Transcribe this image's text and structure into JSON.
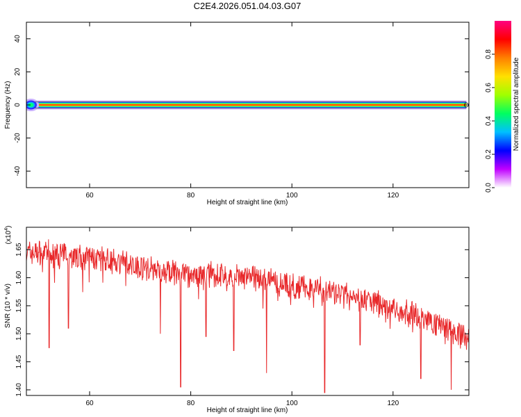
{
  "figure_title": "C2E4.2026.051.04.03.G07",
  "chart_data": [
    {
      "type": "heatmap",
      "title": "C2E4.2026.051.04.03.G07",
      "xlabel": "Height of straight line (km)",
      "ylabel": "Frequency (Hz)",
      "xlim": [
        47.5,
        135
      ],
      "ylim": [
        -50,
        50
      ],
      "x_ticks": [
        60,
        80,
        100,
        120
      ],
      "y_ticks": [
        -40,
        -20,
        0,
        20,
        40
      ],
      "ridge_frequency_hz": 0,
      "ridge_start_km": 47.5,
      "ridge_end_km": 134.5,
      "colorbar": {
        "label": "Normalized spectral amplitude",
        "range": [
          0,
          1
        ],
        "ticks": [
          "0.0",
          "0.2",
          "0.4",
          "0.6",
          "0.8"
        ],
        "tick_values": [
          0,
          0.2,
          0.4,
          0.6,
          0.8
        ],
        "colors": [
          "#ffffff",
          "#c000ff",
          "#0000ff",
          "#00c0ff",
          "#00ff60",
          "#a0ff00",
          "#ffe000",
          "#ff8000",
          "#ff0000",
          "#ff0080"
        ]
      }
    },
    {
      "type": "line",
      "xlabel": "Height of straight line (km)",
      "ylabel": "SNR (10 * v/v)",
      "y_multiplier": "(x10",
      "y_multiplier_exp": "4",
      "xlim": [
        47.5,
        135
      ],
      "ylim": [
        1.39,
        1.69
      ],
      "x_ticks": [
        60,
        80,
        100,
        120
      ],
      "y_ticks": [
        1.4,
        1.45,
        1.5,
        1.55,
        1.6,
        1.65
      ],
      "y_tick_labels": [
        "1.40",
        "1.45",
        "1.50",
        "1.55",
        "1.60",
        "1.65"
      ],
      "series": [
        {
          "name": "SNR",
          "color": "#e8282a",
          "x": [
            47.5,
            50,
            55,
            60,
            65,
            70,
            75,
            80,
            85,
            90,
            95,
            100,
            105,
            110,
            115,
            120,
            125,
            130,
            135
          ],
          "y": [
            1.645,
            1.645,
            1.64,
            1.635,
            1.63,
            1.62,
            1.61,
            1.605,
            1.605,
            1.6,
            1.595,
            1.585,
            1.58,
            1.57,
            1.56,
            1.545,
            1.53,
            1.515,
            1.49
          ],
          "dips": [
            {
              "x": 52.0,
              "y": 1.475
            },
            {
              "x": 55.8,
              "y": 1.51
            },
            {
              "x": 74.0,
              "y": 1.5
            },
            {
              "x": 78.0,
              "y": 1.405
            },
            {
              "x": 83.0,
              "y": 1.495
            },
            {
              "x": 88.5,
              "y": 1.47
            },
            {
              "x": 95.0,
              "y": 1.43
            },
            {
              "x": 106.5,
              "y": 1.395
            },
            {
              "x": 113.5,
              "y": 1.48
            },
            {
              "x": 125.5,
              "y": 1.42
            },
            {
              "x": 131.5,
              "y": 1.4
            }
          ],
          "noise_amplitude": 0.02
        }
      ]
    }
  ]
}
